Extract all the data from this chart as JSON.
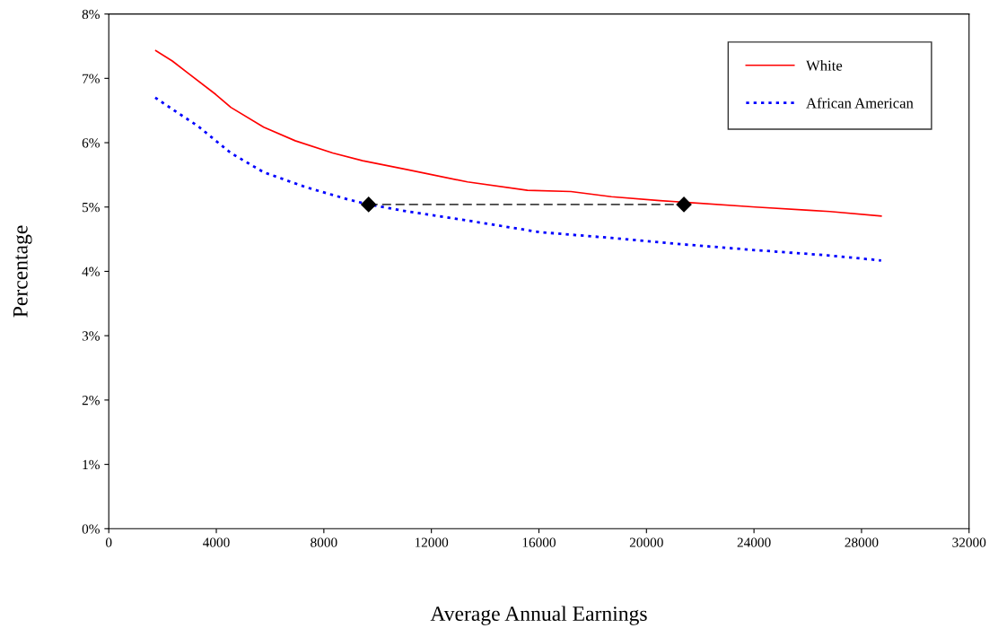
{
  "chart_data": {
    "type": "line",
    "xlabel": "Average Annual Earnings",
    "ylabel": "Percentage",
    "xlim": [
      0,
      32000
    ],
    "xticks": [
      0,
      4000,
      8000,
      12000,
      16000,
      20000,
      24000,
      28000,
      32000
    ],
    "ylim": [
      0,
      8
    ],
    "yticks": [
      {
        "value": 0,
        "label": "0%"
      },
      {
        "value": 1,
        "label": "1%"
      },
      {
        "value": 2,
        "label": "2%"
      },
      {
        "value": 3,
        "label": "3%"
      },
      {
        "value": 4,
        "label": "4%"
      },
      {
        "value": 5,
        "label": "5%"
      },
      {
        "value": 6,
        "label": "6%"
      },
      {
        "value": 7,
        "label": "7%"
      },
      {
        "value": 8,
        "label": "8%"
      }
    ],
    "grid": false,
    "legend": "top right",
    "series": [
      {
        "name": "White",
        "color": "#ff0000",
        "line_style": "solid",
        "marker": "none",
        "x": [
          1750,
          2364,
          2920,
          3980,
          4538,
          5763,
          6934,
          8328,
          9442,
          11114,
          13344,
          15575,
          17191,
          18696,
          20500,
          24047,
          26054,
          26823,
          28729
        ],
        "values": [
          7.43,
          7.27,
          7.09,
          6.75,
          6.55,
          6.24,
          6.03,
          5.84,
          5.72,
          5.58,
          5.39,
          5.26,
          5.24,
          5.16,
          5.1,
          5.0,
          4.95,
          4.93,
          4.86
        ]
      },
      {
        "name": "African American",
        "color": "#0000ff",
        "line_style": "dotted",
        "marker": "none",
        "x": [
          1727,
          2475,
          3311,
          4538,
          5763,
          7324,
          8885,
          9666,
          11114,
          13344,
          16020,
          18696,
          21371,
          24047,
          26722,
          28729
        ],
        "values": [
          6.7,
          6.49,
          6.26,
          5.84,
          5.54,
          5.31,
          5.12,
          5.04,
          4.93,
          4.79,
          4.61,
          4.52,
          4.42,
          4.33,
          4.25,
          4.17
        ]
      },
      {
        "color": "#404040",
        "line_style": "dashed",
        "marker": "diamond",
        "x": [
          9666,
          21394
        ],
        "values": [
          5.04,
          5.04
        ]
      }
    ]
  }
}
